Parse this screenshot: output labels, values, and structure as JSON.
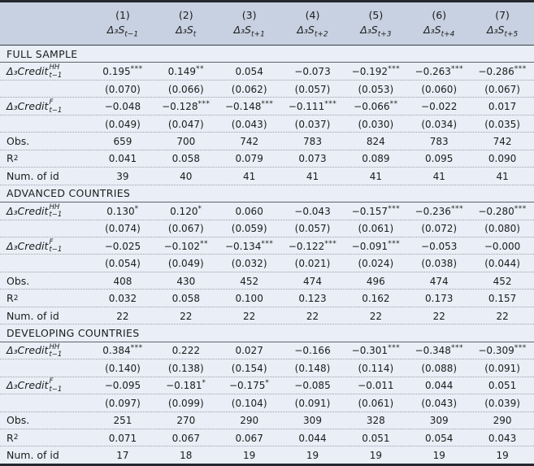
{
  "table": {
    "columns": [
      {
        "num": "(1)",
        "base": "Δ₃S",
        "sub": "t−1"
      },
      {
        "num": "(2)",
        "base": "Δ₃S",
        "sub": "t"
      },
      {
        "num": "(3)",
        "base": "Δ₃S",
        "sub": "t+1"
      },
      {
        "num": "(4)",
        "base": "Δ₃S",
        "sub": "t+2"
      },
      {
        "num": "(5)",
        "base": "Δ₃S",
        "sub": "t+3"
      },
      {
        "num": "(6)",
        "base": "Δ₃S",
        "sub": "t+4"
      },
      {
        "num": "(7)",
        "base": "Δ₃S",
        "sub": "t+5"
      }
    ],
    "panels": [
      {
        "title": "FULL SAMPLE",
        "rows": [
          {
            "kind": "coef",
            "label": {
              "base": "Δ₃Credit",
              "sup": "HH",
              "sub": "t−1"
            },
            "values": [
              "0.195",
              "0.149",
              "0.054",
              "−0.073",
              "−0.192",
              "−0.263",
              "−0.286"
            ],
            "stars": [
              "***",
              "**",
              "",
              "",
              "***",
              "***",
              "***"
            ]
          },
          {
            "kind": "se",
            "values": [
              "(0.070)",
              "(0.066)",
              "(0.062)",
              "(0.057)",
              "(0.053)",
              "(0.060)",
              "(0.067)"
            ]
          },
          {
            "kind": "coef",
            "label": {
              "base": "Δ₃Credit",
              "sup": "F",
              "sub": "t−1"
            },
            "values": [
              "−0.048",
              "−0.128",
              "−0.148",
              "−0.111",
              "−0.066",
              "−0.022",
              "0.017"
            ],
            "stars": [
              "",
              "***",
              "***",
              "***",
              "**",
              "",
              ""
            ]
          },
          {
            "kind": "se",
            "values": [
              "(0.049)",
              "(0.047)",
              "(0.043)",
              "(0.037)",
              "(0.030)",
              "(0.034)",
              "(0.035)"
            ]
          },
          {
            "kind": "stat",
            "label": {
              "base": "Obs."
            },
            "values": [
              "659",
              "700",
              "742",
              "783",
              "824",
              "783",
              "742"
            ]
          },
          {
            "kind": "stat",
            "label": {
              "base": "R",
              "sup": "2"
            },
            "values": [
              "0.041",
              "0.058",
              "0.079",
              "0.073",
              "0.089",
              "0.095",
              "0.090"
            ]
          },
          {
            "kind": "stat",
            "label": {
              "base": "Num. of id"
            },
            "values": [
              "39",
              "40",
              "41",
              "41",
              "41",
              "41",
              "41"
            ]
          }
        ]
      },
      {
        "title": "ADVANCED COUNTRIES",
        "rows": [
          {
            "kind": "coef",
            "label": {
              "base": "Δ₃Credit",
              "sup": "HH",
              "sub": "t−1"
            },
            "values": [
              "0.130",
              "0.120",
              "0.060",
              "−0.043",
              "−0.157",
              "−0.236",
              "−0.280"
            ],
            "stars": [
              "*",
              "*",
              "",
              "",
              "***",
              "***",
              "***"
            ]
          },
          {
            "kind": "se",
            "values": [
              "(0.074)",
              "(0.067)",
              "(0.059)",
              "(0.057)",
              "(0.061)",
              "(0.072)",
              "(0.080)"
            ]
          },
          {
            "kind": "coef",
            "label": {
              "base": "Δ₃Credit",
              "sup": "F",
              "sub": "t−1"
            },
            "values": [
              "−0.025",
              "−0.102",
              "−0.134",
              "−0.122",
              "−0.091",
              "−0.053",
              "−0.000"
            ],
            "stars": [
              "",
              "**",
              "***",
              "***",
              "***",
              "",
              ""
            ]
          },
          {
            "kind": "se",
            "values": [
              "(0.054)",
              "(0.049)",
              "(0.032)",
              "(0.021)",
              "(0.024)",
              "(0.038)",
              "(0.044)"
            ]
          },
          {
            "kind": "stat",
            "label": {
              "base": "Obs."
            },
            "values": [
              "408",
              "430",
              "452",
              "474",
              "496",
              "474",
              "452"
            ]
          },
          {
            "kind": "stat",
            "label": {
              "base": "R",
              "sup": "2"
            },
            "values": [
              "0.032",
              "0.058",
              "0.100",
              "0.123",
              "0.162",
              "0.173",
              "0.157"
            ]
          },
          {
            "kind": "stat",
            "label": {
              "base": "Num. of id"
            },
            "values": [
              "22",
              "22",
              "22",
              "22",
              "22",
              "22",
              "22"
            ]
          }
        ]
      },
      {
        "title": "DEVELOPING COUNTRIES",
        "rows": [
          {
            "kind": "coef",
            "label": {
              "base": "Δ₃Credit",
              "sup": "HH",
              "sub": "t−1"
            },
            "values": [
              "0.384",
              "0.222",
              "0.027",
              "−0.166",
              "−0.301",
              "−0.348",
              "−0.309"
            ],
            "stars": [
              "***",
              "",
              "",
              "",
              "***",
              "***",
              "***"
            ]
          },
          {
            "kind": "se",
            "values": [
              "(0.140)",
              "(0.138)",
              "(0.154)",
              "(0.148)",
              "(0.114)",
              "(0.088)",
              "(0.091)"
            ]
          },
          {
            "kind": "coef",
            "label": {
              "base": "Δ₃Credit",
              "sup": "F",
              "sub": "t−1"
            },
            "values": [
              "−0.095",
              "−0.181",
              "−0.175",
              "−0.085",
              "−0.011",
              "0.044",
              "0.051"
            ],
            "stars": [
              "",
              "*",
              "*",
              "",
              "",
              "",
              ""
            ]
          },
          {
            "kind": "se",
            "values": [
              "(0.097)",
              "(0.099)",
              "(0.104)",
              "(0.091)",
              "(0.061)",
              "(0.043)",
              "(0.039)"
            ]
          },
          {
            "kind": "stat",
            "label": {
              "base": "Obs."
            },
            "values": [
              "251",
              "270",
              "290",
              "309",
              "328",
              "309",
              "290"
            ]
          },
          {
            "kind": "stat",
            "label": {
              "base": "R",
              "sup": "2"
            },
            "values": [
              "0.071",
              "0.067",
              "0.067",
              "0.044",
              "0.051",
              "0.054",
              "0.043"
            ]
          },
          {
            "kind": "stat",
            "label": {
              "base": "Num. of id"
            },
            "values": [
              "17",
              "18",
              "19",
              "19",
              "19",
              "19",
              "19"
            ]
          }
        ]
      }
    ],
    "colors": {
      "header_bg": "#c7d1e1",
      "body_bg": "#e9eef7",
      "rule_dark": "#24282e",
      "rule_panel": "#61666d",
      "dotted_rule": "#9aa0a8",
      "text": "#1c1c1c"
    }
  }
}
